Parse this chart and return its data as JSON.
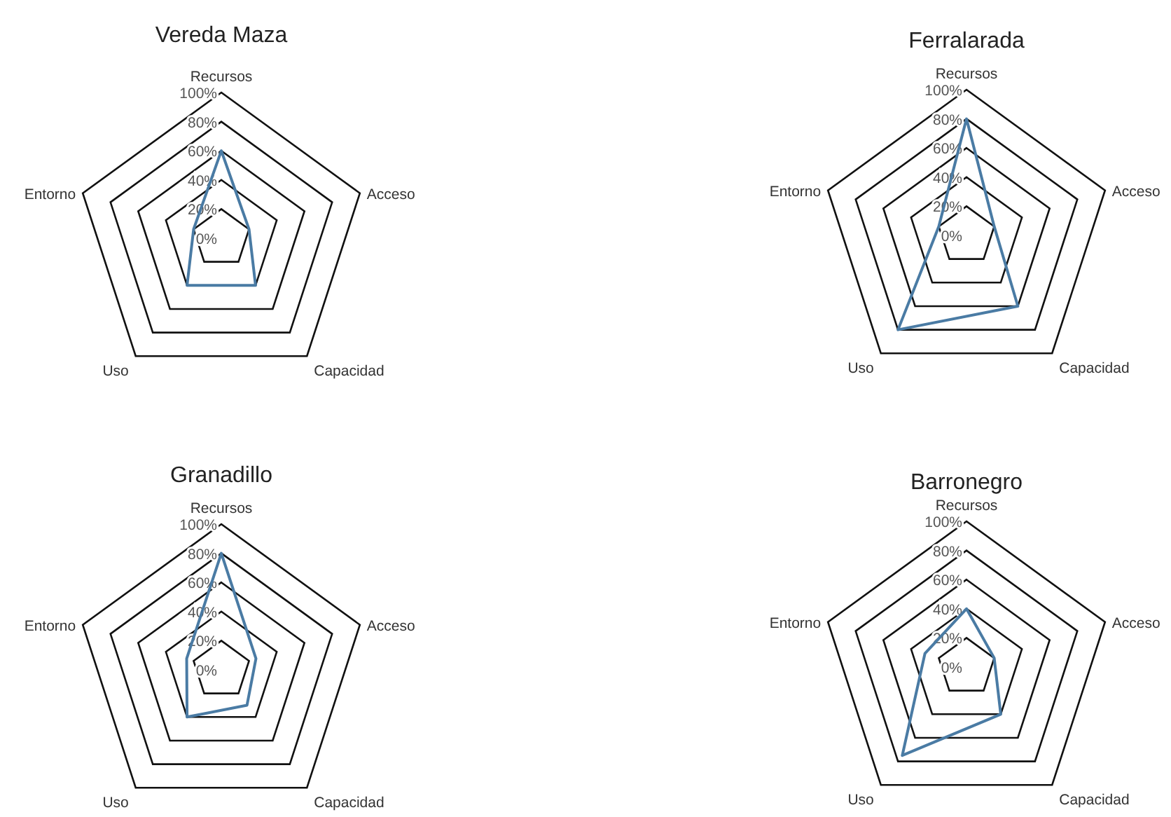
{
  "chart_data": [
    {
      "type": "radar",
      "title": "Vereda Maza",
      "categories": [
        "Recursos",
        "Acceso",
        "Capacidad",
        "Uso",
        "Entorno"
      ],
      "series": [
        {
          "color": "#4a7ba4",
          "values": [
            60,
            20,
            40,
            40,
            20
          ]
        }
      ],
      "ylim": [
        0,
        100
      ],
      "yticks": [
        {
          "value": 0,
          "label": "0%"
        },
        {
          "value": 20,
          "label": "20%"
        },
        {
          "value": 40,
          "label": "40%"
        },
        {
          "value": 60,
          "label": "60%"
        },
        {
          "value": 80,
          "label": "80%"
        },
        {
          "value": 100,
          "label": "100%"
        }
      ],
      "grid": true
    },
    {
      "type": "radar",
      "title": "Ferralarada",
      "categories": [
        "Recursos",
        "Acceso",
        "Capacidad",
        "Uso",
        "Entorno"
      ],
      "series": [
        {
          "color": "#4a7ba4",
          "values": [
            80,
            20,
            60,
            80,
            20
          ]
        }
      ],
      "ylim": [
        0,
        100
      ],
      "yticks": [
        {
          "value": 0,
          "label": "0%"
        },
        {
          "value": 20,
          "label": "20%"
        },
        {
          "value": 40,
          "label": "40%"
        },
        {
          "value": 60,
          "label": "60%"
        },
        {
          "value": 80,
          "label": "80%"
        },
        {
          "value": 100,
          "label": "100%"
        }
      ],
      "grid": true
    },
    {
      "type": "radar",
      "title": "Granadillo",
      "categories": [
        "Recursos",
        "Acceso",
        "Capacidad",
        "Uso",
        "Entorno"
      ],
      "series": [
        {
          "color": "#4a7ba4",
          "values": [
            80,
            25,
            30,
            40,
            25
          ]
        }
      ],
      "ylim": [
        0,
        100
      ],
      "yticks": [
        {
          "value": 0,
          "label": "0%"
        },
        {
          "value": 20,
          "label": "20%"
        },
        {
          "value": 40,
          "label": "40%"
        },
        {
          "value": 60,
          "label": "60%"
        },
        {
          "value": 80,
          "label": "80%"
        },
        {
          "value": 100,
          "label": "100%"
        }
      ],
      "grid": true
    },
    {
      "type": "radar",
      "title": "Barronegro",
      "categories": [
        "Recursos",
        "Acceso",
        "Capacidad",
        "Uso",
        "Entorno"
      ],
      "series": [
        {
          "color": "#4a7ba4",
          "values": [
            40,
            20,
            40,
            75,
            30
          ]
        }
      ],
      "ylim": [
        0,
        100
      ],
      "yticks": [
        {
          "value": 0,
          "label": "0%"
        },
        {
          "value": 20,
          "label": "20%"
        },
        {
          "value": 40,
          "label": "40%"
        },
        {
          "value": 60,
          "label": "60%"
        },
        {
          "value": 80,
          "label": "80%"
        },
        {
          "value": 100,
          "label": "100%"
        }
      ],
      "grid": true
    }
  ]
}
